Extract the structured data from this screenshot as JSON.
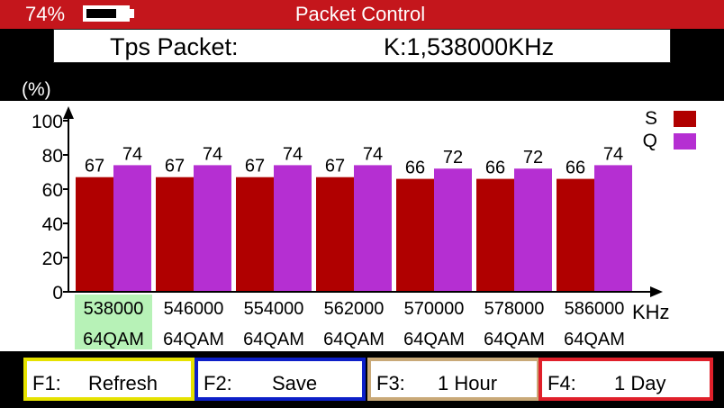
{
  "header": {
    "battery_percent_label": "74%",
    "battery_level": 0.74,
    "title": "Packet Control"
  },
  "info": {
    "label": "Tps Packet:",
    "frequency": "K:1,538000KHz"
  },
  "unit_label": "(%)",
  "colors": {
    "header_bg": "#c4161c",
    "s_bar": "#b00000",
    "q_bar": "#b52fd2",
    "selected_bg": "#b7f2b7",
    "f1_border": "#e6e200",
    "f2_border": "#0d1fc8",
    "f3_border": "#c9a978",
    "f4_border": "#e0202a"
  },
  "chart_data": {
    "type": "bar",
    "ylim": [
      0,
      100
    ],
    "yticks": [
      "0",
      "20",
      "40",
      "60",
      "80",
      "100"
    ],
    "xunit": "KHz",
    "legend": [
      {
        "name": "S",
        "color": "#b00000"
      },
      {
        "name": "Q",
        "color": "#b52fd2"
      }
    ],
    "legend_position": "top-right",
    "categories": [
      "538000",
      "546000",
      "554000",
      "562000",
      "570000",
      "578000",
      "586000"
    ],
    "modulations": [
      "64QAM",
      "64QAM",
      "64QAM",
      "64QAM",
      "64QAM",
      "64QAM",
      "64QAM"
    ],
    "selected_index": 0,
    "series": [
      {
        "name": "S",
        "values": [
          67,
          67,
          67,
          67,
          66,
          66,
          66
        ]
      },
      {
        "name": "Q",
        "values": [
          74,
          74,
          74,
          74,
          72,
          72,
          74
        ]
      }
    ]
  },
  "function_keys": [
    {
      "key": "F1:",
      "label": "Refresh"
    },
    {
      "key": "F2:",
      "label": "Save"
    },
    {
      "key": "F3:",
      "label": "1 Hour"
    },
    {
      "key": "F4:",
      "label": "1 Day"
    }
  ]
}
